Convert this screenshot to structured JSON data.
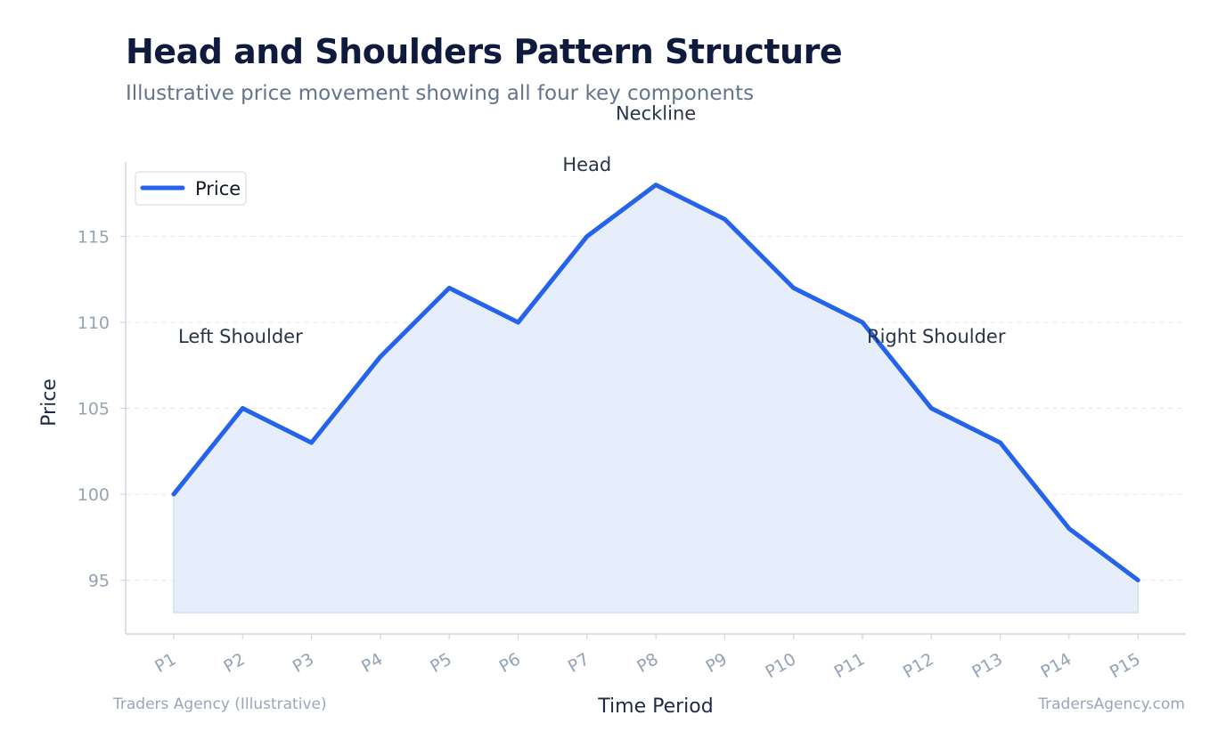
{
  "header": {
    "title": "Head and Shoulders Pattern Structure",
    "subtitle": "Illustrative price movement showing all four key components"
  },
  "footer": {
    "left": "Traders Agency (Illustrative)",
    "right": "TradersAgency.com"
  },
  "colors": {
    "line": "#2563eb",
    "fill": "#e6eefb",
    "grid": "#e5e9f0",
    "axis": "#cbd5e1"
  },
  "chart_data": {
    "type": "area",
    "title": "Head and Shoulders Pattern Structure",
    "subtitle": "Illustrative price movement showing all four key components",
    "xlabel": "Time Period",
    "ylabel": "Price",
    "categories": [
      "P1",
      "P2",
      "P3",
      "P4",
      "P5",
      "P6",
      "P7",
      "P8",
      "P9",
      "P10",
      "P11",
      "P12",
      "P13",
      "P14",
      "P15"
    ],
    "series": [
      {
        "name": "Price",
        "values": [
          100,
          105,
          103,
          108,
          112,
          110,
          115,
          118,
          116,
          112,
          110,
          105,
          103,
          98,
          95
        ]
      }
    ],
    "ylim": [
      92,
      119.5
    ],
    "yticks": [
      95,
      100,
      105,
      110,
      115
    ],
    "fill_baseline": 93.1,
    "grid": true,
    "legend": "top-left",
    "annotations": [
      {
        "text": "Left Shoulder",
        "x": "P1",
        "y": 108.8,
        "anchor": "start"
      },
      {
        "text": "Head",
        "x": "P7",
        "y": 118.8,
        "anchor": "middle"
      },
      {
        "text": "Neckline",
        "x": "P8",
        "y": 121.8,
        "anchor": "middle"
      },
      {
        "text": "Right Shoulder",
        "x": "P11",
        "y": 108.8,
        "anchor": "start"
      }
    ]
  }
}
